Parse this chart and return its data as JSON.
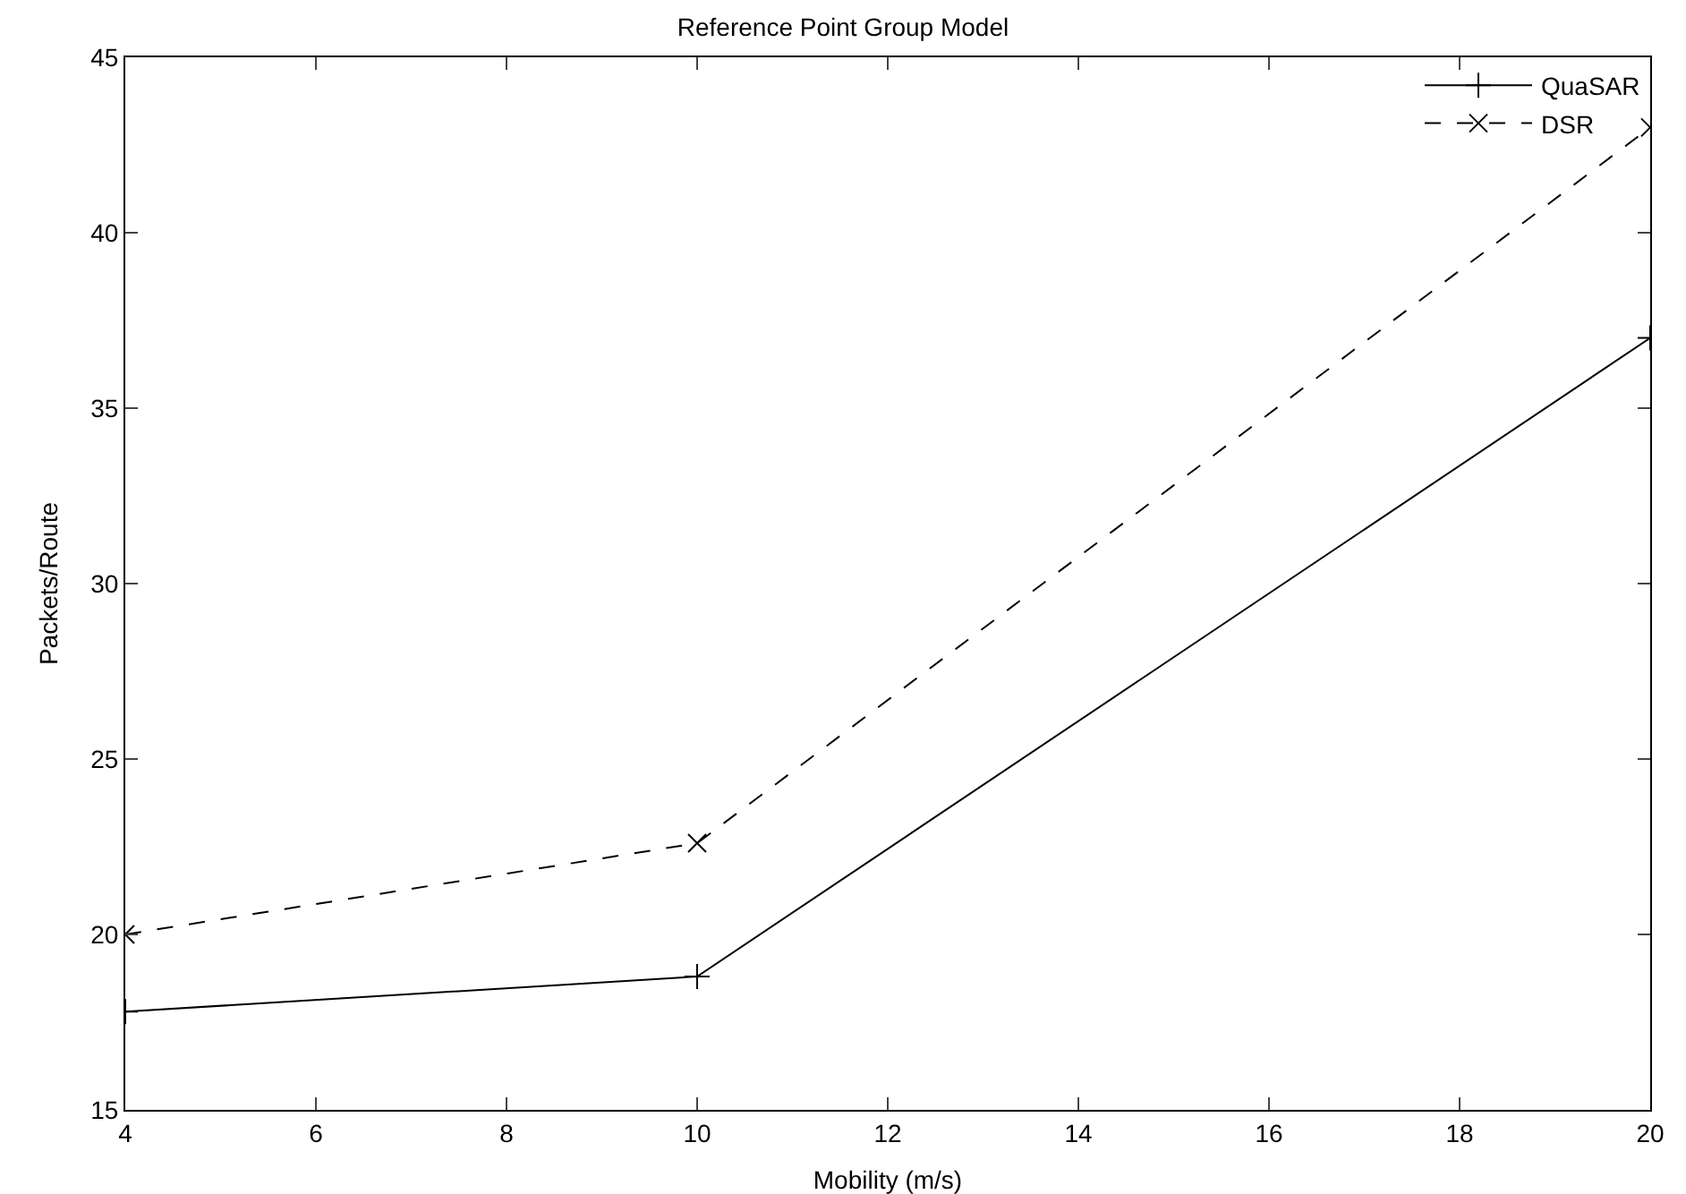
{
  "chart_data": {
    "type": "line",
    "title": "Reference Point Group Model",
    "xlabel": "Mobility (m/s)",
    "ylabel": "Packets/Route",
    "x": [
      4,
      10,
      20
    ],
    "series": [
      {
        "name": "QuaSAR",
        "color": "#000000",
        "values": [
          17.8,
          18.8,
          37
        ],
        "marker": "cross",
        "line_style": "solid"
      },
      {
        "name": "DSR",
        "color": "#000000",
        "values": [
          20,
          22.6,
          43
        ],
        "marker": "x",
        "line_style": "dashed"
      }
    ],
    "xlim": [
      4,
      20
    ],
    "xticks": [
      4,
      6,
      8,
      10,
      12,
      14,
      16,
      18,
      20
    ],
    "ylim": [
      15,
      45
    ],
    "yticks": [
      15,
      20,
      25,
      30,
      35,
      40,
      45
    ],
    "grid": false,
    "legend": "top right"
  }
}
